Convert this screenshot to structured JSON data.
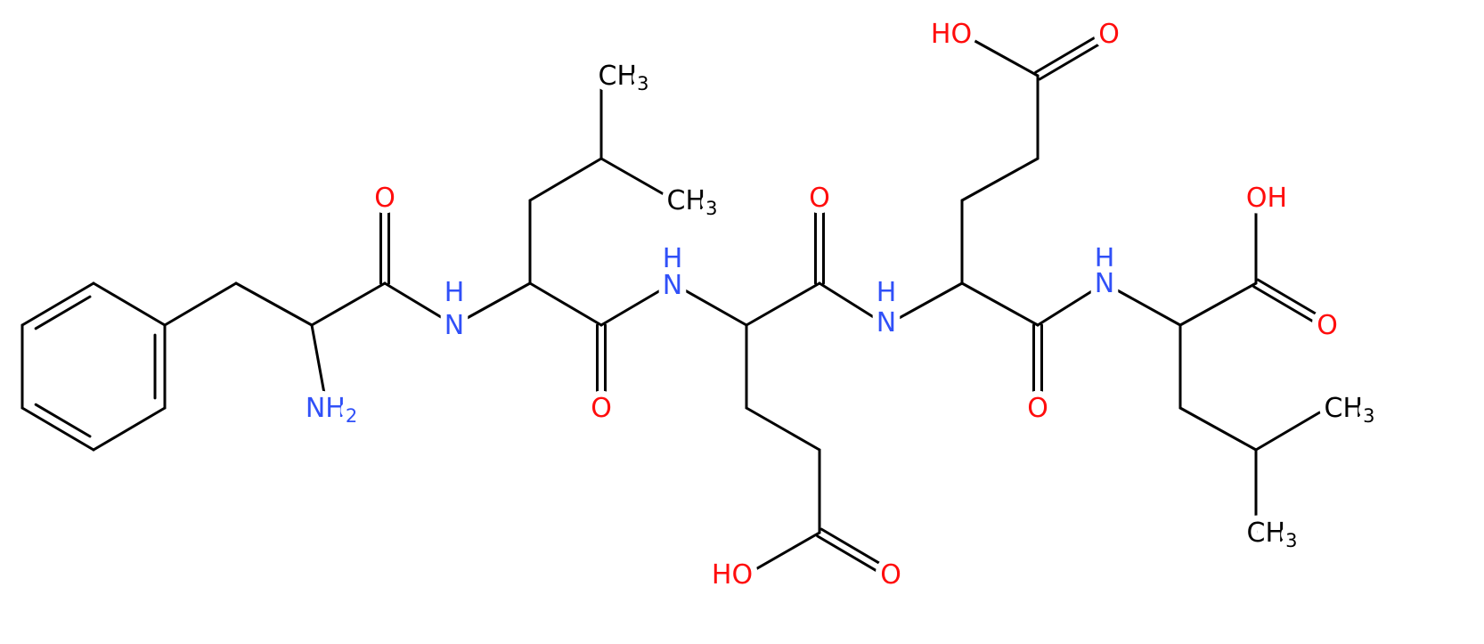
{
  "atoms": [
    {
      "text": "NH",
      "sub": "2"
    },
    {
      "text": "O"
    },
    {
      "text": "H"
    },
    {
      "text": "N"
    },
    {
      "text": "CH",
      "sub": "3"
    },
    {
      "text": "CH",
      "sub": "3"
    },
    {
      "text": "O"
    },
    {
      "text": "H"
    },
    {
      "text": "N"
    },
    {
      "text": "O"
    },
    {
      "text": "H"
    },
    {
      "text": "N"
    },
    {
      "text": "HO"
    },
    {
      "text": "O"
    },
    {
      "text": "HO"
    },
    {
      "text": "O"
    },
    {
      "text": "O"
    },
    {
      "text": "H"
    },
    {
      "text": "N"
    },
    {
      "text": "OH"
    },
    {
      "text": "O"
    },
    {
      "text": "CH",
      "sub": "3"
    },
    {
      "text": "CH",
      "sub": "3"
    }
  ]
}
